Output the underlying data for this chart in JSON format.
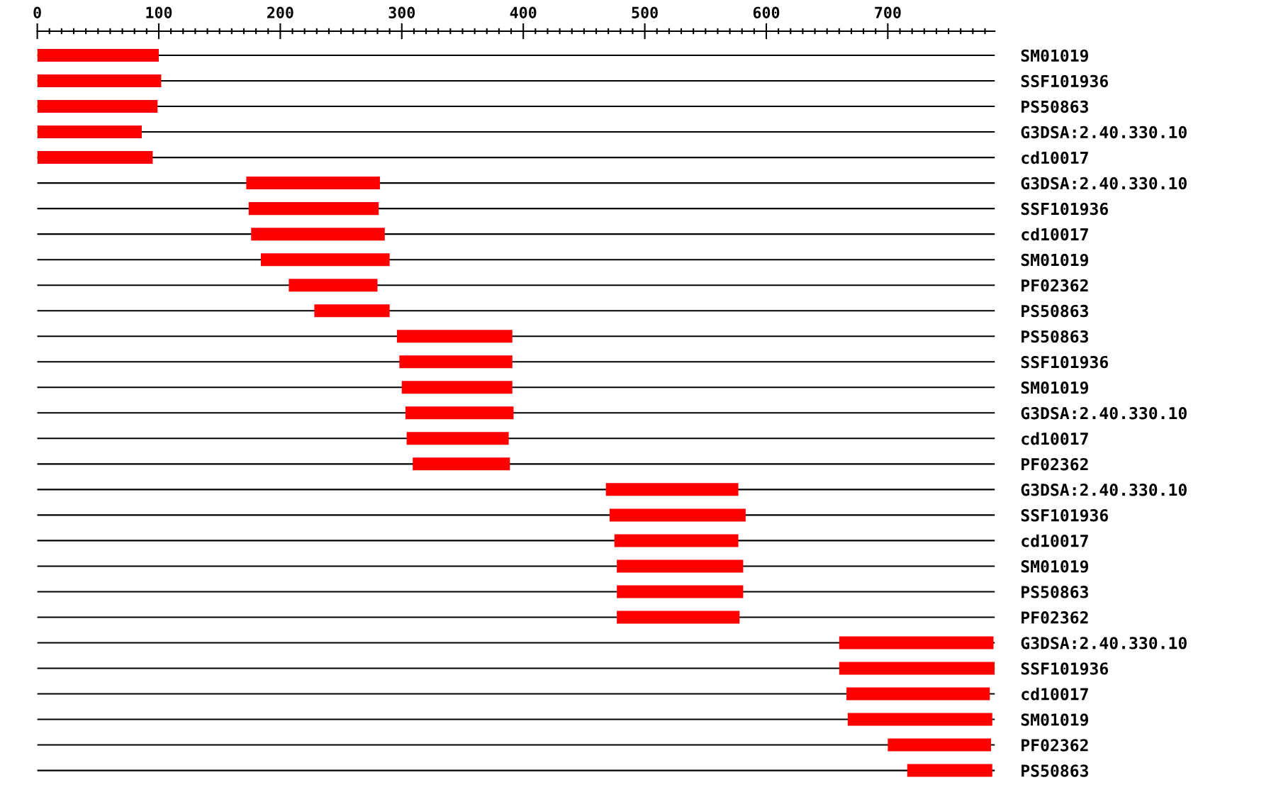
{
  "chart_data": {
    "type": "bar",
    "orientation": "horizontal",
    "categories": [
      "SM01019",
      "SSF101936",
      "PS50863",
      "G3DSA:2.40.330.10",
      "cd10017",
      "G3DSA:2.40.330.10",
      "SSF101936",
      "cd10017",
      "SM01019",
      "PF02362",
      "PS50863",
      "PS50863",
      "SSF101936",
      "SM01019",
      "G3DSA:2.40.330.10",
      "cd10017",
      "PF02362",
      "G3DSA:2.40.330.10",
      "SSF101936",
      "cd10017",
      "SM01019",
      "PS50863",
      "PF02362",
      "G3DSA:2.40.330.10",
      "SSF101936",
      "cd10017",
      "SM01019",
      "PF02362",
      "PS50863"
    ],
    "base": [
      0,
      0,
      0,
      0,
      0,
      172,
      174,
      176,
      184,
      207,
      228,
      296,
      298,
      300,
      303,
      304,
      309,
      468,
      471,
      475,
      477,
      477,
      477,
      660,
      660,
      666,
      667,
      700,
      716
    ],
    "values": [
      100,
      102,
      99,
      86,
      95,
      110,
      107,
      110,
      106,
      73,
      62,
      95,
      93,
      91,
      89,
      84,
      80,
      109,
      112,
      102,
      104,
      104,
      101,
      127,
      128,
      118,
      119,
      85,
      70
    ],
    "color": "#ff0000",
    "xlim": [
      0,
      788
    ],
    "xticks": [
      0,
      {
        "value": 10,
        "label": null
      },
      {
        "value": 20,
        "label": null
      },
      {
        "value": 30,
        "label": null
      },
      {
        "value": 40,
        "label": null
      },
      {
        "value": 50,
        "label": null
      },
      {
        "value": 60,
        "label": null
      },
      {
        "value": 70,
        "label": null
      },
      {
        "value": 80,
        "label": null
      },
      {
        "value": 90,
        "label": null
      },
      100,
      {
        "value": 110,
        "label": null
      },
      {
        "value": 120,
        "label": null
      },
      {
        "value": 130,
        "label": null
      },
      {
        "value": 140,
        "label": null
      },
      {
        "value": 150,
        "label": null
      },
      {
        "value": 160,
        "label": null
      },
      {
        "value": 170,
        "label": null
      },
      {
        "value": 180,
        "label": null
      },
      {
        "value": 190,
        "label": null
      },
      200,
      {
        "value": 210,
        "label": null
      },
      {
        "value": 220,
        "label": null
      },
      {
        "value": 230,
        "label": null
      },
      {
        "value": 240,
        "label": null
      },
      {
        "value": 250,
        "label": null
      },
      {
        "value": 260,
        "label": null
      },
      {
        "value": 270,
        "label": null
      },
      {
        "value": 280,
        "label": null
      },
      {
        "value": 290,
        "label": null
      },
      300,
      {
        "value": 310,
        "label": null
      },
      {
        "value": 320,
        "label": null
      },
      {
        "value": 330,
        "label": null
      },
      {
        "value": 340,
        "label": null
      },
      {
        "value": 350,
        "label": null
      },
      {
        "value": 360,
        "label": null
      },
      {
        "value": 370,
        "label": null
      },
      {
        "value": 380,
        "label": null
      },
      {
        "value": 390,
        "label": null
      },
      400,
      {
        "value": 410,
        "label": null
      },
      {
        "value": 420,
        "label": null
      },
      {
        "value": 430,
        "label": null
      },
      {
        "value": 440,
        "label": null
      },
      {
        "value": 450,
        "label": null
      },
      {
        "value": 460,
        "label": null
      },
      {
        "value": 470,
        "label": null
      },
      {
        "value": 480,
        "label": null
      },
      {
        "value": 490,
        "label": null
      },
      500,
      {
        "value": 510,
        "label": null
      },
      {
        "value": 520,
        "label": null
      },
      {
        "value": 530,
        "label": null
      },
      {
        "value": 540,
        "label": null
      },
      {
        "value": 550,
        "label": null
      },
      {
        "value": 560,
        "label": null
      },
      {
        "value": 570,
        "label": null
      },
      {
        "value": 580,
        "label": null
      },
      {
        "value": 590,
        "label": null
      },
      600,
      {
        "value": 610,
        "label": null
      },
      {
        "value": 620,
        "label": null
      },
      {
        "value": 630,
        "label": null
      },
      {
        "value": 640,
        "label": null
      },
      {
        "value": 650,
        "label": null
      },
      {
        "value": 660,
        "label": null
      },
      {
        "value": 670,
        "label": null
      },
      {
        "value": 680,
        "label": null
      },
      {
        "value": 690,
        "label": null
      },
      700,
      {
        "value": 710,
        "label": null
      },
      {
        "value": 720,
        "label": null
      },
      {
        "value": 730,
        "label": null
      },
      {
        "value": 740,
        "label": null
      },
      {
        "value": 750,
        "label": null
      },
      {
        "value": 760,
        "label": null
      },
      {
        "value": 770,
        "label": null
      },
      {
        "value": 780,
        "label": null
      }
    ],
    "grid": "y"
  }
}
